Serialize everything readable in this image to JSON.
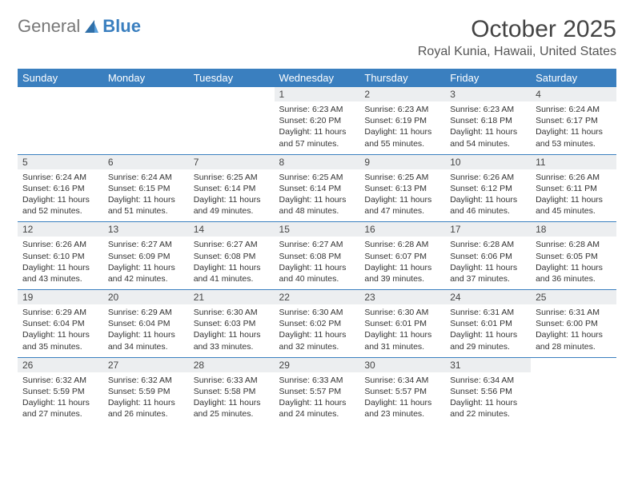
{
  "logo": {
    "text1": "General",
    "text2": "Blue"
  },
  "title": "October 2025",
  "location": "Royal Kunia, Hawaii, United States",
  "colors": {
    "header_bg": "#3a7fbf",
    "daynum_bg": "#eceef0",
    "text": "#333333"
  },
  "weekdays": [
    "Sunday",
    "Monday",
    "Tuesday",
    "Wednesday",
    "Thursday",
    "Friday",
    "Saturday"
  ],
  "weeks": [
    [
      {
        "n": "",
        "lines": []
      },
      {
        "n": "",
        "lines": []
      },
      {
        "n": "",
        "lines": []
      },
      {
        "n": "1",
        "lines": [
          "Sunrise: 6:23 AM",
          "Sunset: 6:20 PM",
          "Daylight: 11 hours and 57 minutes."
        ]
      },
      {
        "n": "2",
        "lines": [
          "Sunrise: 6:23 AM",
          "Sunset: 6:19 PM",
          "Daylight: 11 hours and 55 minutes."
        ]
      },
      {
        "n": "3",
        "lines": [
          "Sunrise: 6:23 AM",
          "Sunset: 6:18 PM",
          "Daylight: 11 hours and 54 minutes."
        ]
      },
      {
        "n": "4",
        "lines": [
          "Sunrise: 6:24 AM",
          "Sunset: 6:17 PM",
          "Daylight: 11 hours and 53 minutes."
        ]
      }
    ],
    [
      {
        "n": "5",
        "lines": [
          "Sunrise: 6:24 AM",
          "Sunset: 6:16 PM",
          "Daylight: 11 hours and 52 minutes."
        ]
      },
      {
        "n": "6",
        "lines": [
          "Sunrise: 6:24 AM",
          "Sunset: 6:15 PM",
          "Daylight: 11 hours and 51 minutes."
        ]
      },
      {
        "n": "7",
        "lines": [
          "Sunrise: 6:25 AM",
          "Sunset: 6:14 PM",
          "Daylight: 11 hours and 49 minutes."
        ]
      },
      {
        "n": "8",
        "lines": [
          "Sunrise: 6:25 AM",
          "Sunset: 6:14 PM",
          "Daylight: 11 hours and 48 minutes."
        ]
      },
      {
        "n": "9",
        "lines": [
          "Sunrise: 6:25 AM",
          "Sunset: 6:13 PM",
          "Daylight: 11 hours and 47 minutes."
        ]
      },
      {
        "n": "10",
        "lines": [
          "Sunrise: 6:26 AM",
          "Sunset: 6:12 PM",
          "Daylight: 11 hours and 46 minutes."
        ]
      },
      {
        "n": "11",
        "lines": [
          "Sunrise: 6:26 AM",
          "Sunset: 6:11 PM",
          "Daylight: 11 hours and 45 minutes."
        ]
      }
    ],
    [
      {
        "n": "12",
        "lines": [
          "Sunrise: 6:26 AM",
          "Sunset: 6:10 PM",
          "Daylight: 11 hours and 43 minutes."
        ]
      },
      {
        "n": "13",
        "lines": [
          "Sunrise: 6:27 AM",
          "Sunset: 6:09 PM",
          "Daylight: 11 hours and 42 minutes."
        ]
      },
      {
        "n": "14",
        "lines": [
          "Sunrise: 6:27 AM",
          "Sunset: 6:08 PM",
          "Daylight: 11 hours and 41 minutes."
        ]
      },
      {
        "n": "15",
        "lines": [
          "Sunrise: 6:27 AM",
          "Sunset: 6:08 PM",
          "Daylight: 11 hours and 40 minutes."
        ]
      },
      {
        "n": "16",
        "lines": [
          "Sunrise: 6:28 AM",
          "Sunset: 6:07 PM",
          "Daylight: 11 hours and 39 minutes."
        ]
      },
      {
        "n": "17",
        "lines": [
          "Sunrise: 6:28 AM",
          "Sunset: 6:06 PM",
          "Daylight: 11 hours and 37 minutes."
        ]
      },
      {
        "n": "18",
        "lines": [
          "Sunrise: 6:28 AM",
          "Sunset: 6:05 PM",
          "Daylight: 11 hours and 36 minutes."
        ]
      }
    ],
    [
      {
        "n": "19",
        "lines": [
          "Sunrise: 6:29 AM",
          "Sunset: 6:04 PM",
          "Daylight: 11 hours and 35 minutes."
        ]
      },
      {
        "n": "20",
        "lines": [
          "Sunrise: 6:29 AM",
          "Sunset: 6:04 PM",
          "Daylight: 11 hours and 34 minutes."
        ]
      },
      {
        "n": "21",
        "lines": [
          "Sunrise: 6:30 AM",
          "Sunset: 6:03 PM",
          "Daylight: 11 hours and 33 minutes."
        ]
      },
      {
        "n": "22",
        "lines": [
          "Sunrise: 6:30 AM",
          "Sunset: 6:02 PM",
          "Daylight: 11 hours and 32 minutes."
        ]
      },
      {
        "n": "23",
        "lines": [
          "Sunrise: 6:30 AM",
          "Sunset: 6:01 PM",
          "Daylight: 11 hours and 31 minutes."
        ]
      },
      {
        "n": "24",
        "lines": [
          "Sunrise: 6:31 AM",
          "Sunset: 6:01 PM",
          "Daylight: 11 hours and 29 minutes."
        ]
      },
      {
        "n": "25",
        "lines": [
          "Sunrise: 6:31 AM",
          "Sunset: 6:00 PM",
          "Daylight: 11 hours and 28 minutes."
        ]
      }
    ],
    [
      {
        "n": "26",
        "lines": [
          "Sunrise: 6:32 AM",
          "Sunset: 5:59 PM",
          "Daylight: 11 hours and 27 minutes."
        ]
      },
      {
        "n": "27",
        "lines": [
          "Sunrise: 6:32 AM",
          "Sunset: 5:59 PM",
          "Daylight: 11 hours and 26 minutes."
        ]
      },
      {
        "n": "28",
        "lines": [
          "Sunrise: 6:33 AM",
          "Sunset: 5:58 PM",
          "Daylight: 11 hours and 25 minutes."
        ]
      },
      {
        "n": "29",
        "lines": [
          "Sunrise: 6:33 AM",
          "Sunset: 5:57 PM",
          "Daylight: 11 hours and 24 minutes."
        ]
      },
      {
        "n": "30",
        "lines": [
          "Sunrise: 6:34 AM",
          "Sunset: 5:57 PM",
          "Daylight: 11 hours and 23 minutes."
        ]
      },
      {
        "n": "31",
        "lines": [
          "Sunrise: 6:34 AM",
          "Sunset: 5:56 PM",
          "Daylight: 11 hours and 22 minutes."
        ]
      },
      {
        "n": "",
        "lines": []
      }
    ]
  ]
}
